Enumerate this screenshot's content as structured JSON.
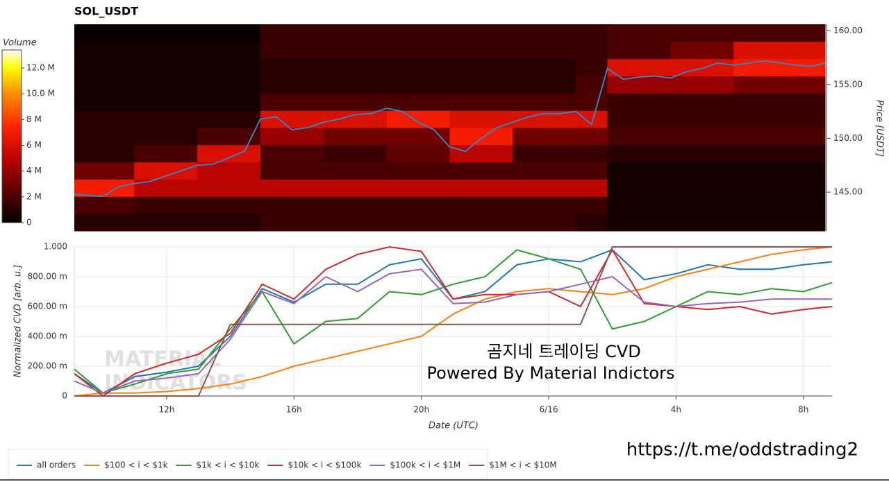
{
  "chart_data": [
    {
      "type": "heatmap",
      "title": "SOL_USDT",
      "colorbar_title": "Volume",
      "xlim": [
        9.1,
        32.9
      ],
      "ylim": [
        141.4,
        160.6
      ],
      "yticks": [
        {
          "value": 145,
          "label": "145.00"
        },
        {
          "value": 150,
          "label": "150.00"
        },
        {
          "value": 155,
          "label": "155.00"
        },
        {
          "value": 160,
          "label": "160.00"
        }
      ],
      "y_label": "Price [USDT]",
      "zlim": [
        0,
        13.4
      ],
      "colorbar_ticks": [
        0,
        {
          "value": 2,
          "label": "2 M"
        },
        {
          "value": 4,
          "label": "4 M"
        },
        {
          "value": 6,
          "label": "6 M"
        },
        {
          "value": 8,
          "label": "8 M"
        },
        {
          "value": 10,
          "label": "10.0 M"
        },
        {
          "value": 12,
          "label": "12.0 M"
        }
      ],
      "x_bins": [
        9.1,
        11,
        13,
        15,
        17,
        19,
        21,
        23,
        25,
        26,
        28,
        30,
        32.9
      ],
      "y_bins": [
        141.4,
        143,
        144.6,
        146.2,
        147.8,
        149.4,
        151,
        152.6,
        154.2,
        155.8,
        157.4,
        159,
        160.6
      ],
      "z": [
        [
          1,
          1,
          1,
          1.5,
          1.5,
          1.5,
          1.5,
          1.5,
          1,
          0.5,
          0.5,
          0.5
        ],
        [
          2,
          1.5,
          1.5,
          1.5,
          1.5,
          1.5,
          1.5,
          1.5,
          1.5,
          0.5,
          0.5,
          0.5
        ],
        [
          7,
          5,
          5,
          5,
          5,
          5,
          5,
          5,
          5,
          0.5,
          0.5,
          0.5
        ],
        [
          3,
          6,
          5,
          2,
          2,
          2,
          2,
          2,
          2,
          0.5,
          0.5,
          0.5
        ],
        [
          1,
          2,
          6,
          2,
          1.5,
          2.5,
          5,
          1.5,
          1.5,
          1,
          1,
          1
        ],
        [
          1,
          1,
          2,
          4,
          3,
          3,
          7,
          3,
          3,
          2,
          2,
          2
        ],
        [
          1,
          1,
          1,
          6,
          6,
          7,
          6,
          6,
          6,
          1.5,
          1.5,
          1.5
        ],
        [
          0.5,
          0.5,
          0.5,
          2,
          2,
          2,
          2,
          2,
          2,
          1.5,
          1.5,
          1.5
        ],
        [
          0.5,
          0.5,
          0.5,
          1,
          1,
          1,
          1,
          1,
          2,
          4,
          4,
          3
        ],
        [
          0.5,
          0.5,
          0.5,
          1,
          1,
          1,
          1,
          1,
          1.5,
          6,
          6,
          7
        ],
        [
          0.5,
          0.5,
          0.5,
          1.5,
          1.5,
          1.5,
          1.5,
          1.5,
          1.5,
          2,
          3,
          6
        ],
        [
          0.2,
          0.2,
          0.2,
          1.5,
          1.5,
          1.5,
          1.5,
          1.5,
          1.5,
          2,
          2,
          2
        ]
      ],
      "price_line": {
        "color": "#3d7fbf",
        "x": [
          9.1,
          10,
          10.5,
          11,
          11.5,
          12,
          12.5,
          13,
          13.5,
          14,
          14.5,
          15,
          15.5,
          16,
          16.5,
          17,
          17.5,
          18,
          18.5,
          19,
          19.5,
          20,
          20.5,
          21,
          21.5,
          22,
          22.5,
          23,
          23.5,
          24,
          24.5,
          25,
          25.5,
          26,
          26.5,
          27,
          27.5,
          28,
          28.5,
          29,
          29.5,
          30,
          30.5,
          31,
          31.5,
          32,
          32.5,
          32.9
        ],
        "values": [
          144.8,
          144.6,
          145.5,
          145.8,
          146,
          146.5,
          147,
          147.5,
          147.6,
          148.2,
          148.8,
          151.8,
          152,
          150.8,
          151,
          151.5,
          151.8,
          152.2,
          152.3,
          152.8,
          152.5,
          151.5,
          150.8,
          149.2,
          148.8,
          150,
          151,
          151.5,
          152,
          152.3,
          152.3,
          152.5,
          151.3,
          156.5,
          155.5,
          155.7,
          155.8,
          155.6,
          156.2,
          156.5,
          157,
          156.8,
          157,
          157.2,
          157,
          156.8,
          156.7,
          157
        ]
      }
    },
    {
      "type": "line",
      "grid": true,
      "legend": "bottom-left",
      "xlim": [
        9.1,
        32.9
      ],
      "ylim": [
        0,
        1.0
      ],
      "xticks": [
        {
          "value": 12,
          "label": "12h"
        },
        {
          "value": 16,
          "label": "16h"
        },
        {
          "value": 20,
          "label": "20h"
        },
        {
          "value": 24,
          "label": "6/16"
        },
        {
          "value": 28,
          "label": "4h"
        },
        {
          "value": 32,
          "label": "8h"
        }
      ],
      "yticks": [
        0,
        {
          "value": 0.2,
          "label": "200.00 m"
        },
        {
          "value": 0.4,
          "label": "400.00 m"
        },
        {
          "value": 0.6,
          "label": "600.00 m"
        },
        {
          "value": 0.8,
          "label": "800.00 m"
        },
        {
          "value": 1.0,
          "label": "1.000"
        }
      ],
      "x_label": "Date (UTC)",
      "y_label": "Normalized CVD [arb. u.]",
      "x": [
        9.1,
        10,
        11,
        12,
        13,
        14,
        15,
        16,
        17,
        18,
        19,
        20,
        21,
        22,
        23,
        24,
        25,
        26,
        27,
        28,
        29,
        30,
        31,
        32,
        32.9
      ],
      "series": [
        {
          "name": "all orders",
          "color": "#1f77b4",
          "values": [
            0.15,
            0.02,
            0.13,
            0.16,
            0.2,
            0.4,
            0.72,
            0.63,
            0.75,
            0.75,
            0.88,
            0.92,
            0.65,
            0.7,
            0.88,
            0.92,
            0.9,
            0.98,
            0.78,
            0.82,
            0.88,
            0.85,
            0.85,
            0.88,
            0.9
          ]
        },
        {
          "name": "$100 < i < $1k",
          "color": "#ff7f0e",
          "values": [
            0.0,
            0.02,
            0.02,
            0.03,
            0.05,
            0.08,
            0.13,
            0.2,
            0.25,
            0.3,
            0.35,
            0.4,
            0.55,
            0.65,
            0.7,
            0.72,
            0.7,
            0.68,
            0.72,
            0.8,
            0.85,
            0.9,
            0.95,
            0.98,
            1.0
          ]
        },
        {
          "name": "$1k < i < $10k",
          "color": "#2ca02c",
          "values": [
            0.18,
            0.02,
            0.08,
            0.15,
            0.18,
            0.45,
            0.7,
            0.35,
            0.5,
            0.52,
            0.7,
            0.68,
            0.75,
            0.8,
            0.98,
            0.92,
            0.85,
            0.45,
            0.5,
            0.6,
            0.7,
            0.68,
            0.72,
            0.7,
            0.76
          ]
        },
        {
          "name": "$10k < i < $100k",
          "color": "#d62728",
          "values": [
            0.15,
            0.0,
            0.15,
            0.22,
            0.28,
            0.42,
            0.75,
            0.65,
            0.85,
            0.95,
            1.0,
            0.97,
            0.65,
            0.68,
            0.68,
            0.7,
            0.6,
            0.98,
            0.62,
            0.6,
            0.58,
            0.6,
            0.55,
            0.58,
            0.6
          ]
        },
        {
          "name": "$100k < i < $1M",
          "color": "#9467bd",
          "values": [
            0.1,
            0.02,
            0.1,
            0.12,
            0.15,
            0.38,
            0.7,
            0.62,
            0.8,
            0.7,
            0.82,
            0.85,
            0.62,
            0.63,
            0.68,
            0.7,
            0.75,
            0.8,
            0.63,
            0.6,
            0.62,
            0.63,
            0.65,
            0.65,
            0.65
          ]
        },
        {
          "name": "$1M < i < $10M",
          "color": "#8c564b",
          "values": [
            0.0,
            0.0,
            0.0,
            0.0,
            0.0,
            0.48,
            0.48,
            0.48,
            0.48,
            0.48,
            0.48,
            0.48,
            0.48,
            0.48,
            0.48,
            0.48,
            0.48,
            1.0,
            1.0,
            1.0,
            1.0,
            1.0,
            1.0,
            1.0,
            1.0
          ]
        }
      ],
      "annotations": [
        "곰지네 트레이딩 CVD",
        "Powered By Material Indictors"
      ],
      "watermark": [
        "MATERIAL",
        "INDICATORS"
      ]
    }
  ],
  "footer_link": "https://t.me/oddstrading2"
}
